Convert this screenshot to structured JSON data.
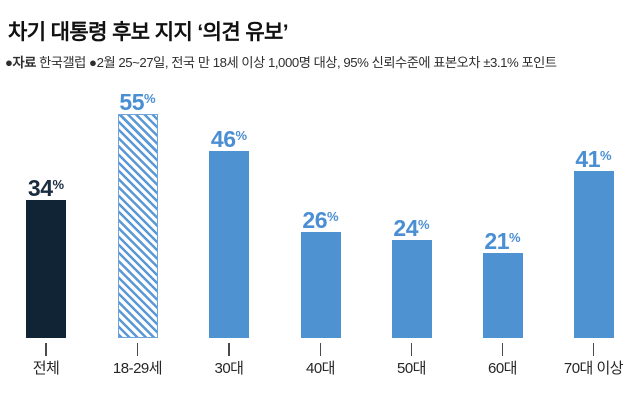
{
  "header": {
    "title": "차기 대통령 후보 지지 ‘의견 유보’",
    "source_bold": "●자료",
    "source_rest": " 한국갤럽 ●2월 25~27일, 전국 만 18세 이상 1,000명 대상, 95% 신뢰수준에 표본오차 ±3.1% 포인트"
  },
  "chart_data": {
    "type": "bar",
    "title": "차기 대통령 후보 지지 ‘의견 유보’",
    "source": "자료 한국갤럽, 2월 25~27일, 전국 만 18세 이상 1,000명 대상, 95% 신뢰수준에 표본오차 ±3.1% 포인트",
    "categories": [
      "전체",
      "18-29세",
      "30대",
      "40대",
      "50대",
      "60대",
      "70대 이상"
    ],
    "values": [
      34,
      55,
      46,
      26,
      24,
      21,
      41
    ],
    "unit": "%",
    "bar_styles": [
      "dark",
      "hatched",
      "blue",
      "blue",
      "blue",
      "blue",
      "blue"
    ],
    "xlabel": "",
    "ylabel": "",
    "ylim": [
      0,
      60
    ],
    "grid": false,
    "legend": "none",
    "colors": {
      "blue_bar": "#4e92d1",
      "dark_bar": "#102436",
      "hatch_stripe": "#5b98d6",
      "hatch_background": "#ffffff",
      "value_label_blue": "#4a8ed3",
      "value_label_dark": "#1a2c3f",
      "axis_tick": "#4a4a4a",
      "category_label": "#262626"
    }
  }
}
